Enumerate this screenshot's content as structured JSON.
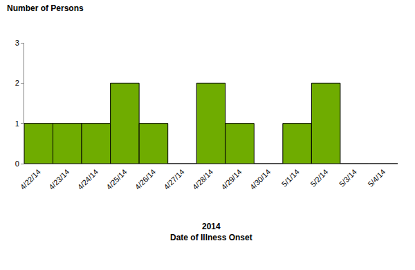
{
  "chart_data": {
    "type": "bar",
    "y_label": "Number of Persons",
    "x_label": [
      "2014",
      "Date of Illness Onset"
    ],
    "categories": [
      "4/22/14",
      "4/23/14",
      "4/24/14",
      "4/25/14",
      "4/26/14",
      "4/27/14",
      "4/28/14",
      "4/29/14",
      "4/30/14",
      "5/1/14",
      "5/2/14",
      "5/3/14",
      "5/4/14"
    ],
    "values": [
      1,
      1,
      1,
      2,
      1,
      0,
      2,
      1,
      0,
      1,
      2,
      0,
      0
    ],
    "color": "#6fac00",
    "ylim": [
      0,
      3
    ],
    "yticks": [
      0,
      1,
      2,
      3
    ],
    "grid": false
  }
}
